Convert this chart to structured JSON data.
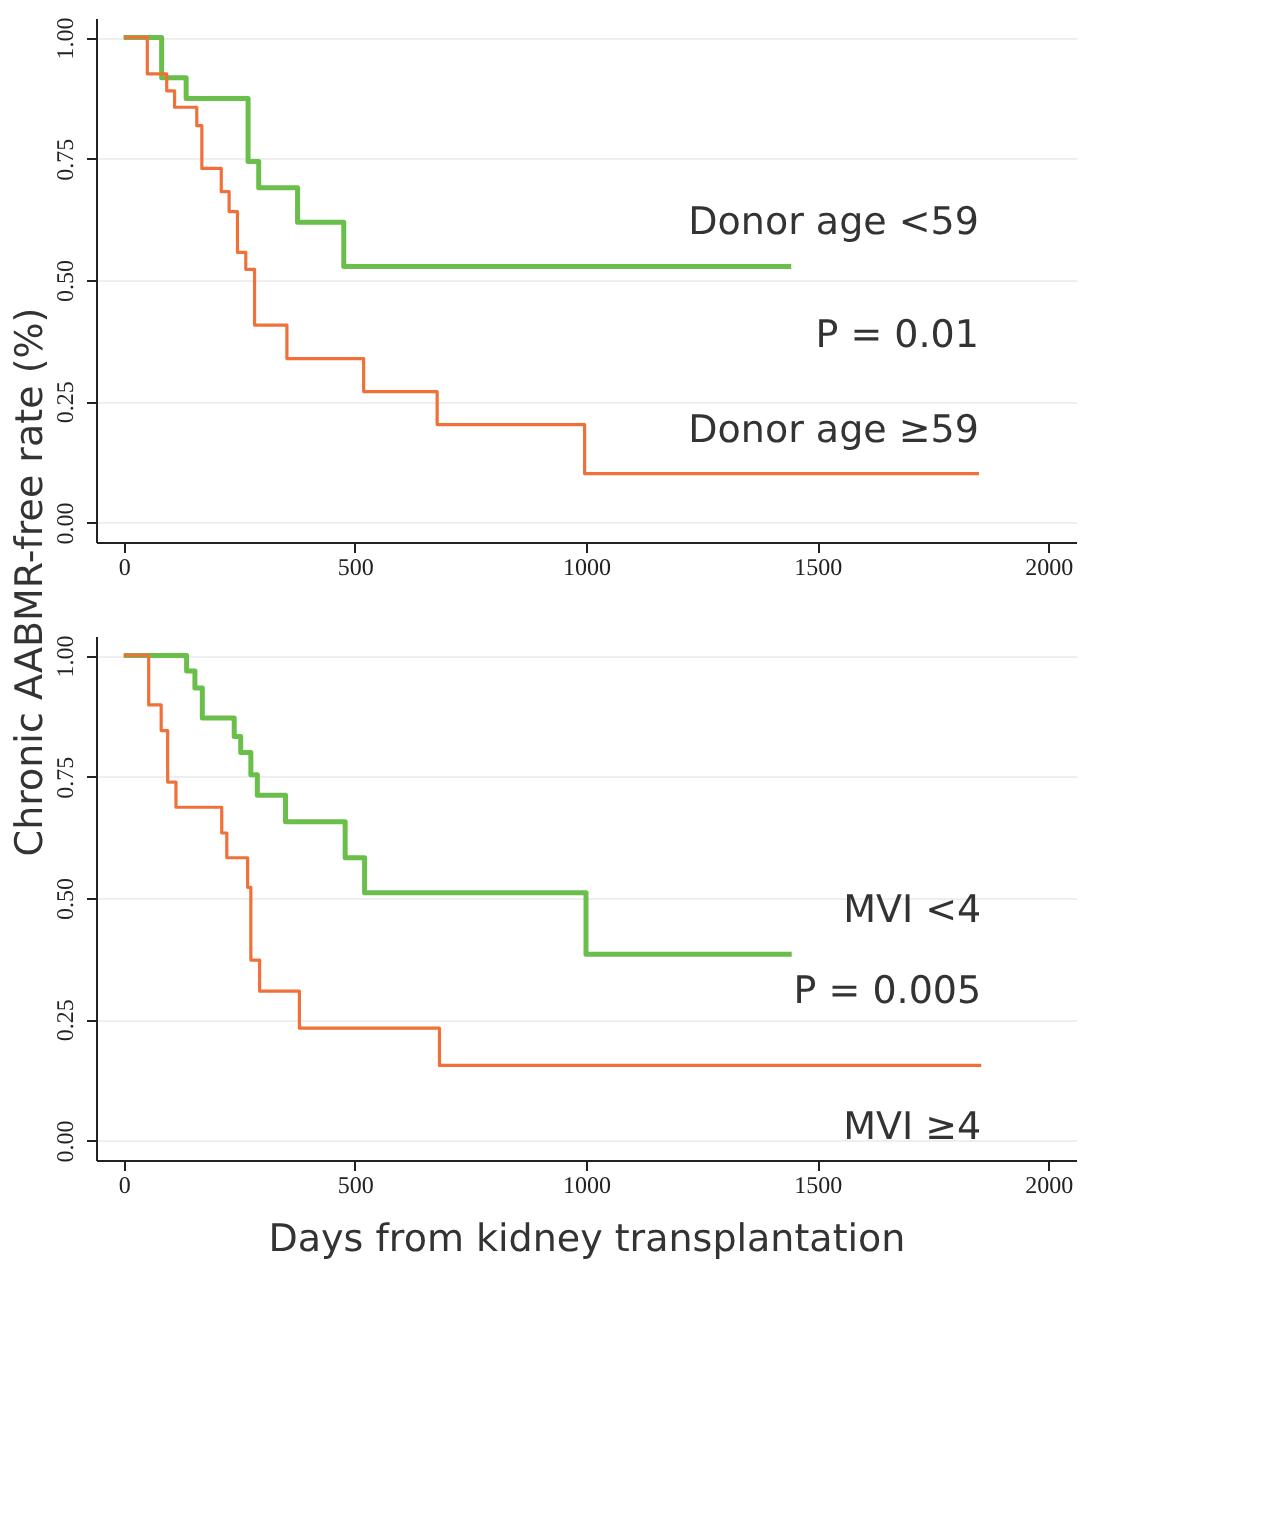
{
  "chart_data": [
    {
      "type": "step",
      "ylabel": "Chronic AABMR-free rate (%)",
      "xlim": [
        -60,
        2060
      ],
      "ylim": [
        -0.04,
        1.04
      ],
      "xticks": [
        0,
        500,
        1000,
        1500,
        2000
      ],
      "yticks": [
        {
          "value": 0,
          "label": "0.00"
        },
        {
          "value": 0.25,
          "label": "0.25"
        },
        {
          "value": 0.5,
          "label": "0.50"
        },
        {
          "value": 0.75,
          "label": "0.75"
        },
        {
          "value": 1,
          "label": "1.00"
        }
      ],
      "grid": "y",
      "annotations": [
        "P = 0.01"
      ],
      "series": [
        {
          "name": "Donor age <59",
          "color": "#6abf4b",
          "x": [
            0,
            82,
            135,
            269,
            292,
            376,
            476,
            1444
          ],
          "values": [
            1.0,
            0.917,
            0.874,
            0.744,
            0.69,
            0.619,
            0.528,
            0.528
          ]
        },
        {
          "name": "Donor age ≥59",
          "color": "#f0703a",
          "x": [
            0,
            51,
            93,
            110,
            158,
            169,
            211,
            228,
            246,
            264,
            283,
            353,
            519,
            678,
            997,
            1850
          ],
          "values": [
            1.0,
            0.925,
            0.89,
            0.856,
            0.818,
            0.73,
            0.682,
            0.641,
            0.557,
            0.522,
            0.407,
            0.338,
            0.27,
            0.202,
            0.101,
            0.101
          ]
        }
      ]
    },
    {
      "type": "step",
      "xlabel": "Days from kidney transplantation",
      "xlim": [
        -60,
        2060
      ],
      "ylim": [
        -0.04,
        1.04
      ],
      "xticks": [
        0,
        500,
        1000,
        1500,
        2000
      ],
      "yticks": [
        {
          "value": 0,
          "label": "0.00"
        },
        {
          "value": 0.25,
          "label": "0.25"
        },
        {
          "value": 0.5,
          "label": "0.50"
        },
        {
          "value": 0.75,
          "label": "0.75"
        },
        {
          "value": 1,
          "label": "1.00"
        }
      ],
      "grid": "y",
      "annotations": [
        "P = 0.005"
      ],
      "series": [
        {
          "name": "MVI <4",
          "color": "#6abf4b",
          "x": [
            0,
            136,
            154,
            170,
            239,
            253,
            275,
            289,
            350,
            479,
            521,
            1000,
            1445
          ],
          "values": [
            1.0,
            0.968,
            0.933,
            0.871,
            0.833,
            0.8,
            0.754,
            0.712,
            0.657,
            0.583,
            0.511,
            0.384,
            0.384
          ]
        },
        {
          "name": "MVI ≥4",
          "color": "#f0703a",
          "x": [
            0,
            54,
            81,
            95,
            113,
            212,
            223,
            268,
            275,
            294,
            380,
            683,
            1855
          ],
          "values": [
            1.0,
            0.898,
            0.845,
            0.739,
            0.687,
            0.634,
            0.583,
            0.522,
            0.372,
            0.308,
            0.232,
            0.155,
            0.155
          ]
        }
      ]
    }
  ]
}
